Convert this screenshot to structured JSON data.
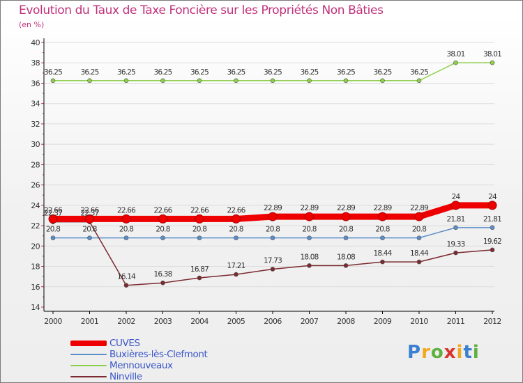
{
  "chart_data": {
    "type": "line",
    "title": "Evolution du Taux de Taxe Foncière sur les Propriétés Non Bâties",
    "unit_label": "(en %)",
    "xlabel": "",
    "ylabel": "",
    "ylim": [
      14,
      40
    ],
    "y_ticks": [
      "14",
      "16",
      "18",
      "20",
      "22",
      "24",
      "26",
      "28",
      "30",
      "32",
      "34",
      "36",
      "38",
      "40"
    ],
    "categories": [
      "2000",
      "2001",
      "2002",
      "2003",
      "2004",
      "2005",
      "2006",
      "2007",
      "2008",
      "2009",
      "2010",
      "2011",
      "2012"
    ],
    "legend_position": "bottom-left",
    "series": [
      {
        "name": "CUVES",
        "color": "#ee0000",
        "emphasis": "bold",
        "values": [
          22.66,
          22.66,
          22.66,
          22.66,
          22.66,
          22.66,
          22.89,
          22.89,
          22.89,
          22.89,
          22.89,
          24,
          24
        ],
        "labels": [
          "22.66",
          "22.66",
          "22.66",
          "22.66",
          "22.66",
          "22.66",
          "22.89",
          "22.89",
          "22.89",
          "22.89",
          "22.89",
          "24",
          "24"
        ]
      },
      {
        "name": "Buxières-lès-Clefmont",
        "color": "#5b8ec9",
        "values": [
          20.8,
          20.8,
          20.8,
          20.8,
          20.8,
          20.8,
          20.8,
          20.8,
          20.8,
          20.8,
          20.8,
          21.81,
          21.81
        ],
        "labels": [
          "20.8",
          "20.8",
          "20.8",
          "20.8",
          "20.8",
          "20.8",
          "20.8",
          "20.8",
          "20.8",
          "20.8",
          "20.8",
          "21.81",
          "21.81"
        ]
      },
      {
        "name": "Mennouveaux",
        "color": "#8ed04e",
        "values": [
          36.25,
          36.25,
          36.25,
          36.25,
          36.25,
          36.25,
          36.25,
          36.25,
          36.25,
          36.25,
          36.25,
          38.01,
          38.01
        ],
        "labels": [
          "36.25",
          "36.25",
          "36.25",
          "36.25",
          "36.25",
          "36.25",
          "36.25",
          "36.25",
          "36.25",
          "36.25",
          "36.25",
          "38.01",
          "38.01"
        ]
      },
      {
        "name": "Ninville",
        "color": "#7a2a30",
        "values": [
          22.37,
          22.37,
          16.14,
          16.38,
          16.87,
          17.21,
          17.73,
          18.08,
          18.08,
          18.44,
          18.44,
          19.33,
          19.62
        ],
        "labels": [
          "22.37",
          "22.37",
          "16.14",
          "16.38",
          "16.87",
          "17.21",
          "17.73",
          "18.08",
          "18.08",
          "18.44",
          "18.44",
          "19.33",
          "19.62"
        ]
      }
    ]
  },
  "logo": {
    "text": "Proxiti",
    "letter_colors": [
      "#3a7fd0",
      "#f2a81d",
      "#5fb03f",
      "#d9342b",
      "#f2a81d",
      "#3a7fd0",
      "#5fb03f"
    ]
  }
}
